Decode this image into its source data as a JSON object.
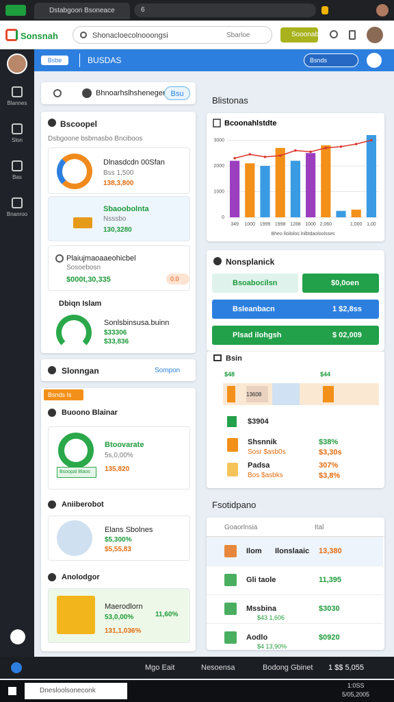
{
  "browser": {
    "tab": "Dstabgoon Bsoneace",
    "address": "6"
  },
  "header": {
    "logo": "Sonsnah",
    "search": "Shonacloecolnooongsi",
    "search_hint": "Sbarloe",
    "button": "Sooonab"
  },
  "sidebar": {
    "items": [
      "Blannes",
      "Slon",
      "Bas",
      "Bnanroo"
    ]
  },
  "topbar": {
    "button": "Bsbe",
    "title": "BUSDAS",
    "select": "Bsnds"
  },
  "left": {
    "search_card": {
      "text": "Bhnoarhslhsheneger",
      "button": "Bsu"
    },
    "card1": {
      "title": "Bscoopel",
      "subtitle": "Dsbgoone bsbmasbo Bnciboos",
      "items": [
        {
          "title": "Dlnasdcdn 00Sfan",
          "line1": "Bss 1,500",
          "line2": "138,3,800"
        },
        {
          "title": "Sbaoobolnta",
          "line1": "Nsssbo",
          "line2": "130,3280"
        },
        {
          "title": "Plaiujmaoaaeohicbel",
          "line1": "Sosoebosn",
          "line2": "$000t,30,335",
          "badge": "0.0"
        },
        {
          "title": "Dbiqn Islam",
          "subtitle": "Sonlsbinsusa.buinn",
          "line1": "$33306",
          "line2": "$33,836"
        }
      ]
    },
    "card2": {
      "title": "Slonngan",
      "link": "Sompon"
    },
    "card3": {
      "tag": "Bsnds Is",
      "sections": [
        {
          "title": "Buoono Blainar",
          "box": "Bsoopal Blaos",
          "name": "Btoovarate",
          "line1": "5s,0,00%",
          "line2": "135,820"
        },
        {
          "title": "Aniiberobot",
          "name": "Elans Sbolnes",
          "line1": "$5,300%",
          "line2": "$5,55,83"
        },
        {
          "title": "Anolodgor",
          "name": "Maerodlorn",
          "line1": "53,0,00%",
          "line2": "131,1,036%",
          "right": "11,60%"
        }
      ]
    }
  },
  "right": {
    "heading": "Blistonas",
    "nons": {
      "title": "Nonsplanick",
      "rows": [
        [
          "Bsoabocilsn",
          "$0,0oen"
        ],
        [
          "Bsleanbacn",
          "1 $2,8ss"
        ],
        [
          "Plsad ilohgsh",
          "$ 02,009"
        ]
      ]
    },
    "bsin": {
      "title": "Bsin",
      "top": [
        "$48",
        "$44"
      ],
      "bar_label": "13608",
      "rows": [
        {
          "title": "$3904"
        },
        {
          "title": "Shsnnik",
          "sub": "Sosr $asb0s",
          "v1": "$38%",
          "v2": "$3,30s"
        },
        {
          "title": "Padsa",
          "sub": "Bos $asbks",
          "v1": "307%",
          "v2": "$3,8%"
        }
      ]
    },
    "heading2": "Fsotidpano",
    "table": {
      "header": [
        "Goaorlnsia",
        "Ital"
      ],
      "rows": [
        [
          "Ilom",
          "Ilonslaaic",
          "13,380"
        ],
        [
          "Gli taole",
          "",
          "11,395"
        ],
        [
          "Mssbina",
          "$43 1,606",
          "$3030"
        ],
        [
          "Aodlo",
          "$4 13,90%",
          "$0920"
        ]
      ]
    }
  },
  "taskbar": {
    "items": [
      "Mgo Eait",
      "Nesoensa",
      "Bodong Gbinet",
      "1 $$ 5,055"
    ],
    "search": "Dnesloolsoneconk",
    "time": "1:0SS",
    "date": "5/05,2005"
  },
  "chart_data": {
    "type": "bar",
    "title": "Bcoonahlstdte",
    "x_label": "Bheo lloilolos lnlbtdaoloolsses",
    "categories": [
      "349",
      "1000",
      "1999",
      "1998",
      "1288",
      "1000",
      "2,060",
      null,
      "1,000",
      "1,00"
    ],
    "values": [
      2200,
      2100,
      2000,
      2700,
      2200,
      2500,
      2800,
      250,
      300,
      3200
    ],
    "colors": [
      "#9b3fbf",
      "#f39019",
      "#3a9be3",
      "#f39019",
      "#3a9be3",
      "#9b3fbf",
      "#f39019",
      "#3a9be3",
      "#f39019",
      "#3a9be3"
    ],
    "line_values": [
      2300,
      2450,
      2350,
      2400,
      2600,
      2550,
      2700,
      2750,
      2850,
      3000
    ],
    "line_color": "#d9342b",
    "ylim": [
      0,
      3200
    ],
    "yticks": [
      0,
      1000,
      2000,
      3000
    ],
    "grid": true
  }
}
